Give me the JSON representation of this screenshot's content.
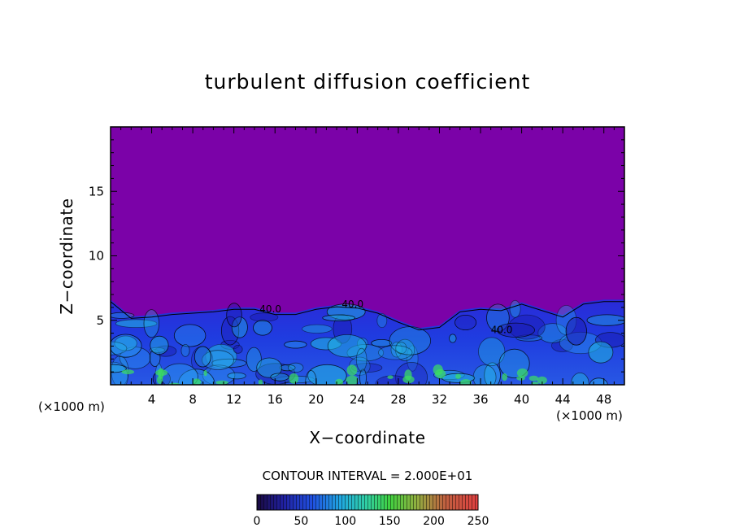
{
  "chart_data": {
    "type": "heatmap",
    "title": "turbulent diffusion coefficient",
    "xlabel": "X−coordinate",
    "ylabel": "Z−coordinate",
    "x_unit_label_left": "(×1000 m)",
    "x_unit_label_right": "(×1000 m)",
    "xlim": [
      0,
      50
    ],
    "ylim": [
      0,
      20
    ],
    "x_ticks": [
      4,
      8,
      12,
      16,
      20,
      24,
      28,
      32,
      36,
      40,
      44,
      48
    ],
    "y_ticks": [
      5,
      10,
      15
    ],
    "contour_interval_text": "CONTOUR INTERVAL = 2.000E+01",
    "contour_labels": [
      {
        "text": "40.0",
        "x": 14.5,
        "z": 5.6
      },
      {
        "text": "40.0",
        "x": 22.5,
        "z": 6.0
      },
      {
        "text": "40.0",
        "x": 37.0,
        "z": 4.0
      }
    ],
    "boundary_layer_top_z": [
      [
        0,
        6.6
      ],
      [
        2,
        5.3
      ],
      [
        4,
        5.4
      ],
      [
        6,
        5.6
      ],
      [
        8,
        5.7
      ],
      [
        10,
        5.8
      ],
      [
        12,
        6.0
      ],
      [
        14,
        6.0
      ],
      [
        16,
        5.6
      ],
      [
        18,
        5.6
      ],
      [
        20,
        6.0
      ],
      [
        22,
        6.2
      ],
      [
        24,
        6.1
      ],
      [
        26,
        5.7
      ],
      [
        28,
        5.0
      ],
      [
        30,
        4.4
      ],
      [
        32,
        4.6
      ],
      [
        34,
        5.8
      ],
      [
        36,
        6.0
      ],
      [
        38,
        5.9
      ],
      [
        40,
        6.4
      ],
      [
        42,
        5.9
      ],
      [
        44,
        5.4
      ],
      [
        46,
        6.4
      ],
      [
        48,
        6.6
      ],
      [
        50,
        6.6
      ]
    ],
    "colorbar": {
      "min": 0,
      "max": 250,
      "ticks": [
        0,
        50,
        100,
        150,
        200,
        250
      ]
    },
    "colors": {
      "background_field": "#7b02a8",
      "low_values": "#1e28d8",
      "mid_values": "#22b4e0",
      "high_values": "#3ce060",
      "contour_line": "#000000"
    }
  }
}
